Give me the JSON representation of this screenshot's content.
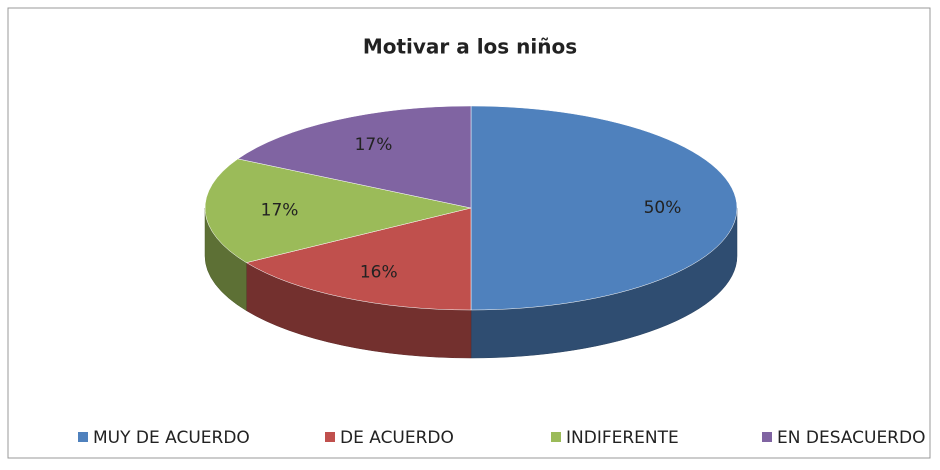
{
  "chart_data": {
    "type": "pie3d",
    "title": "Motivar a los niños",
    "categories": [
      "MUY DE ACUERDO",
      "DE ACUERDO",
      "INDIFERENTE",
      "EN DESACUERDO"
    ],
    "values": [
      50,
      16,
      17,
      17
    ],
    "value_labels": [
      "50%",
      "16%",
      "17%",
      "17%"
    ],
    "colors": [
      "#4f81bd",
      "#c0504d",
      "#9bbb59",
      "#8064a2"
    ],
    "legend": "bottom"
  }
}
